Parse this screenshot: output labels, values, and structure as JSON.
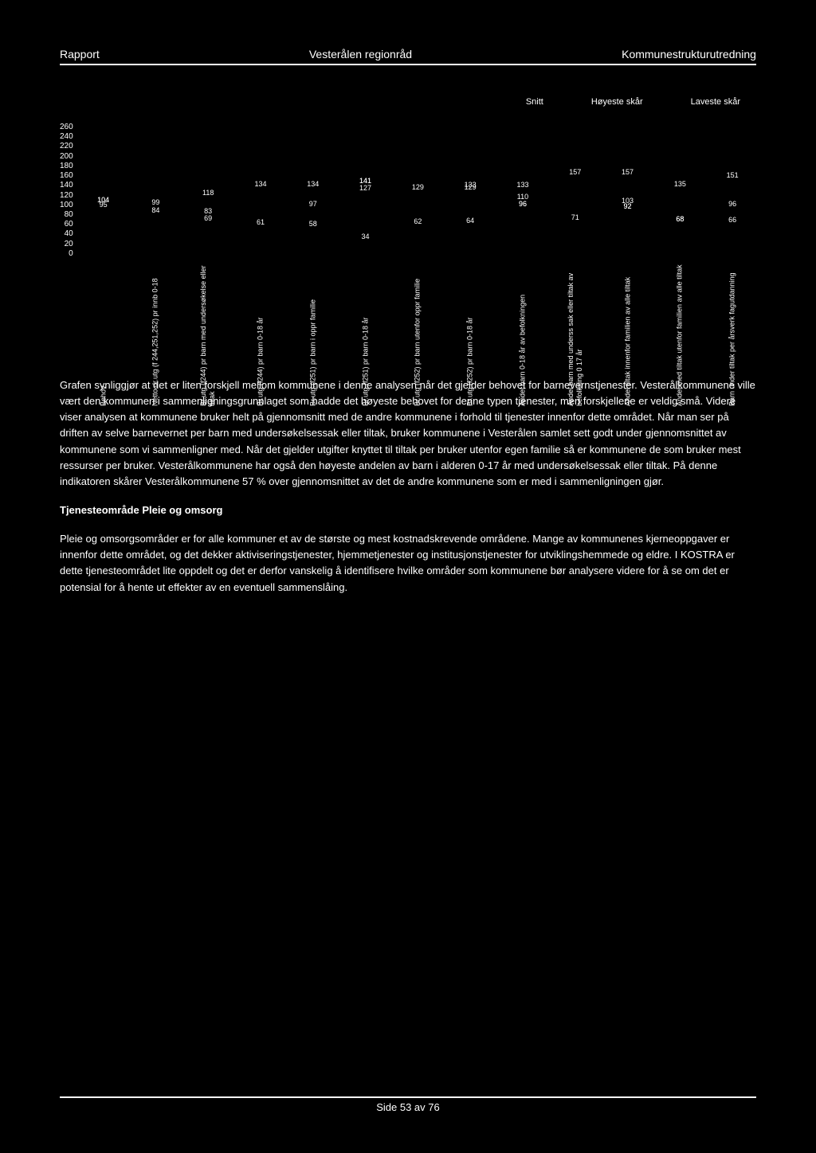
{
  "header": {
    "left": "Rapport",
    "center": "Vesterålen regionråd",
    "right": "Kommunestrukturutredning"
  },
  "legend": {
    "l1": "Snitt",
    "l2": "Høyeste skår",
    "l3": "Laveste skår"
  },
  "yaxis": [
    "260",
    "240",
    "220",
    "200",
    "180",
    "160",
    "140",
    "120",
    "100",
    "80",
    "60",
    "40",
    "20",
    "0"
  ],
  "categories": [
    {
      "label": "Behov",
      "values": [
        "104",
        "95",
        "104"
      ]
    },
    {
      "label": "Netto dr.utg (f 244,251,252) pr innb 0-18",
      "values": [
        "99",
        "84"
      ]
    },
    {
      "label": "Br.utg.(f244) pr barn med undersøkelse eller tiltak",
      "values": [
        "118",
        "83",
        "69"
      ]
    },
    {
      "label": "Br.utg.(f244) pr barn 0-18 år",
      "values": [
        "134",
        "61"
      ]
    },
    {
      "label": "Br.utg.(f251) pr barn i oppr familie",
      "values": [
        "134",
        "97",
        "58"
      ]
    },
    {
      "label": "Br.utg.(f251) pr barn 0-18 år",
      "values": [
        "127",
        "141",
        "141",
        "34"
      ]
    },
    {
      "label": "Br.utg (f252) pr barn utenfor oppr familie",
      "values": [
        "129",
        "62"
      ]
    },
    {
      "label": "Br.utg.(f252) pr barn 0-18 år",
      "values": [
        "129",
        "133",
        "64"
      ]
    },
    {
      "label": "Andel barn 0-18 år av befolkningen",
      "values": [
        "133",
        "110",
        "96",
        "96"
      ]
    },
    {
      "label": "Andel barn med underss sak eller tiltak av befolkning 0 17 år",
      "values": [
        "157",
        "71"
      ]
    },
    {
      "label": "Andel tiltak innenfor familien av alle tiltak",
      "values": [
        "157",
        "103",
        "92",
        "92"
      ]
    },
    {
      "label": "Andel med tiltak utenfor familien av alle tiltak",
      "values": [
        "135",
        "68",
        "68"
      ]
    },
    {
      "label": "Barn under tiltak per årsverk fagutdanning",
      "values": [
        "151",
        "96",
        "66"
      ]
    }
  ],
  "paragraphs": {
    "p1": "Grafen synliggjør at det er liten forskjell mellom kommunene i denne analysen når det gjelder behovet for barnevernstjenester. Vesterålkommunene ville vært den kommunen i sammenligningsgrunnlaget som hadde det høyeste behovet for denne typen tjenester, men forskjellene er veldig små. Videre viser analysen at kommunene bruker helt på gjennomsnitt med de andre kommunene i forhold til tjenester innenfor dette området. Når man ser på driften av selve barnevernet per barn med undersøkelsessak eller tiltak, bruker kommunene i Vesterålen samlet sett godt under gjennomsnittet av kommunene som vi sammenligner med. Når det gjelder utgifter knyttet til tiltak per bruker utenfor egen familie så er kommunene de som bruker mest ressurser per bruker. Vesterålkommunene har også den høyeste andelen av barn i alderen 0-17 år med undersøkelsessak eller tiltak. På denne indikatoren skårer Vesterålkommunene 57 % over gjennomsnittet av det de andre kommunene som er med i sammenligningen gjør.",
    "subhead": "Tjenesteområde Pleie og omsorg",
    "p2": "Pleie og omsorgsområder er for alle kommuner et av de største og mest kostnadskrevende områdene. Mange av kommunenes kjerneoppgaver er innenfor dette området, og det dekker aktiviseringstjenester, hjemmetjenester og institusjonstjenester for utviklingshemmede og eldre. I KOSTRA er dette tjenesteområdet lite oppdelt og det er derfor vanskelig å identifisere hvilke områder som kommunene bør analysere videre for å se om det er potensial for å hente ut effekter av en eventuell sammenslåing."
  },
  "footer": "Side 53 av 76"
}
